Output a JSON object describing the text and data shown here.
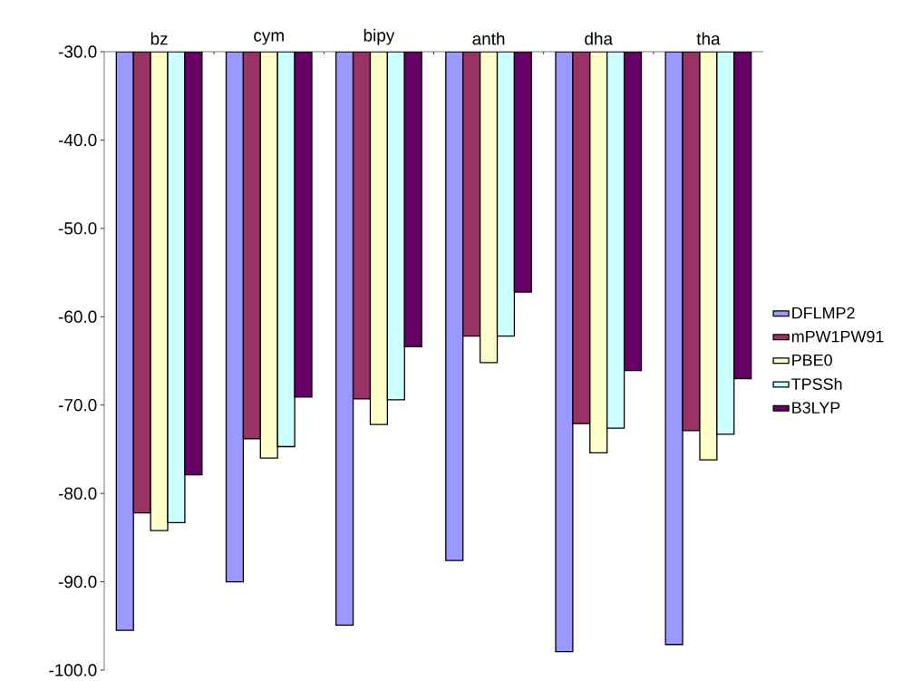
{
  "chart_data": {
    "type": "bar",
    "categories": [
      "bz",
      "cym",
      "bipy",
      "anth",
      "dha",
      "tha"
    ],
    "series": [
      {
        "name": "DFLMP2",
        "color": "#9999ff",
        "values": [
          -95.5,
          -90.0,
          -94.9,
          -87.6,
          -97.9,
          -97.1
        ]
      },
      {
        "name": "mPW1PW91",
        "color": "#993366",
        "values": [
          -82.2,
          -73.8,
          -69.3,
          -62.2,
          -72.1,
          -72.9
        ]
      },
      {
        "name": "PBE0",
        "color": "#ffffcc",
        "values": [
          -84.2,
          -76.0,
          -72.2,
          -65.2,
          -75.4,
          -76.2
        ]
      },
      {
        "name": "TPSSh",
        "color": "#ccffff",
        "values": [
          -83.3,
          -74.7,
          -69.4,
          -62.2,
          -72.6,
          -73.3
        ]
      },
      {
        "name": "B3LYP",
        "color": "#660066",
        "values": [
          -77.9,
          -69.1,
          -63.4,
          -57.2,
          -66.1,
          -67.0
        ]
      }
    ],
    "ylim": [
      -100,
      -30
    ],
    "yticks": [
      {
        "value": -100,
        "label": "-100.0"
      },
      {
        "value": -90,
        "label": "-90.0"
      },
      {
        "value": -80,
        "label": "-80.0"
      },
      {
        "value": -70,
        "label": "-70.0"
      },
      {
        "value": -60,
        "label": "-60.0"
      },
      {
        "value": -50,
        "label": "-50.0"
      },
      {
        "value": -40,
        "label": "-40.0"
      },
      {
        "value": -30,
        "label": "-30.0"
      }
    ],
    "legend": "right"
  }
}
